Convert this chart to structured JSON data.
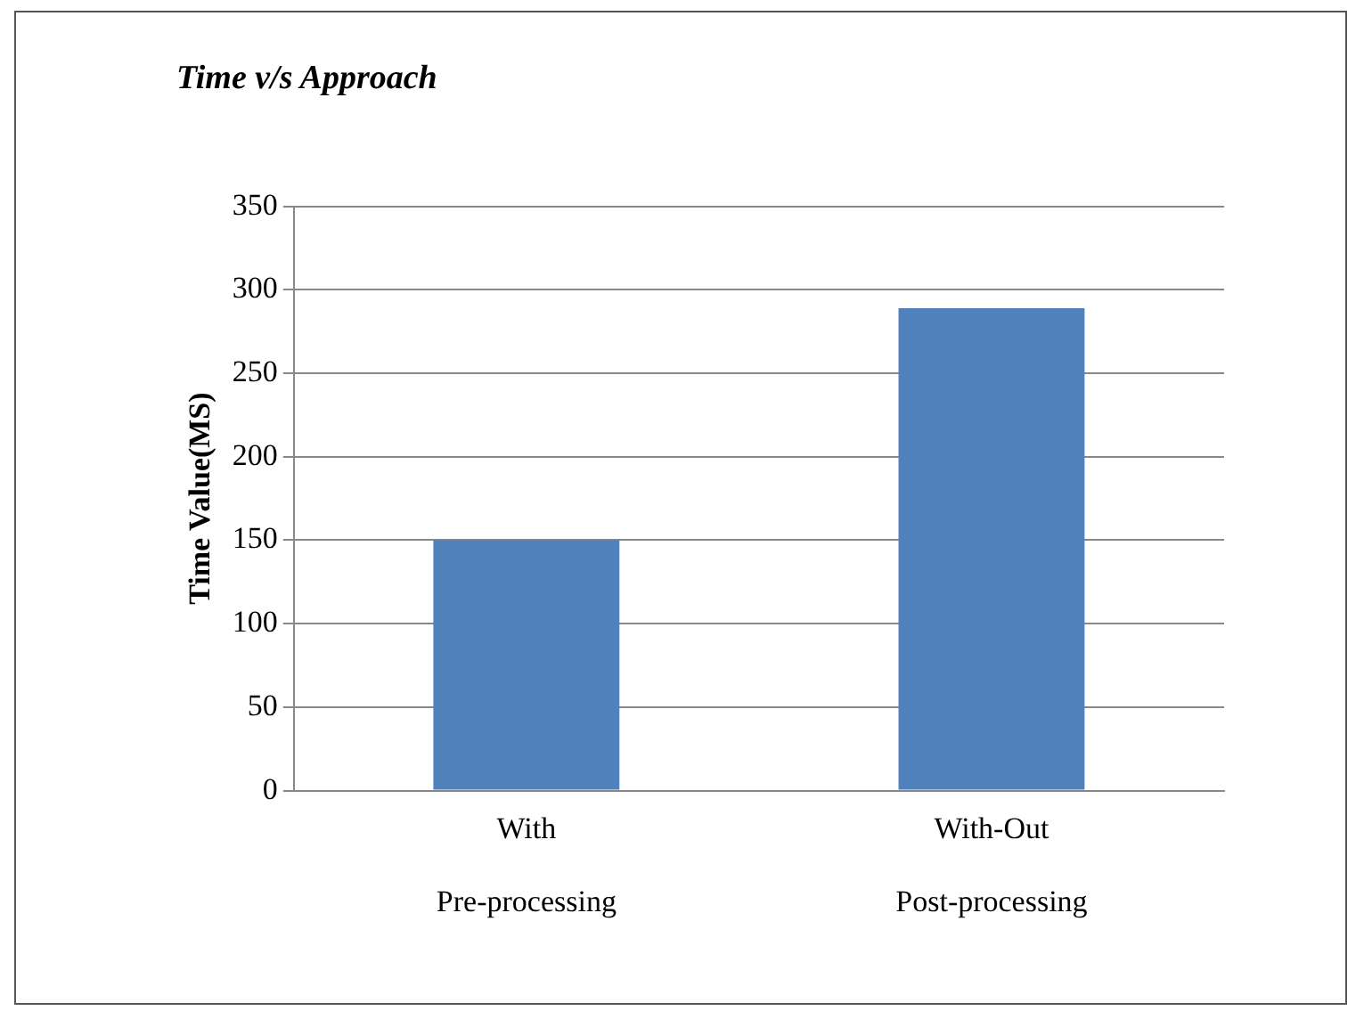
{
  "chart_data": {
    "type": "bar",
    "title": "Time v/s Approach",
    "ylabel": "Time Value(MS)",
    "categories": [
      "With\nPre-processing",
      "With-Out\nPost-processing"
    ],
    "values": [
      150,
      289
    ],
    "color": "#4f81bd",
    "ylim": [
      0,
      350
    ],
    "yticks": [
      0,
      50,
      100,
      150,
      200,
      250,
      300,
      350
    ],
    "grid": "y"
  }
}
